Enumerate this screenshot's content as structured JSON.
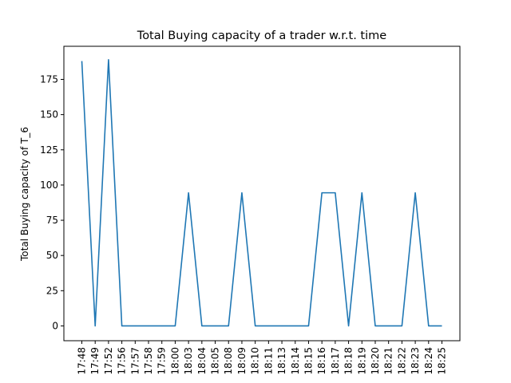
{
  "chart_data": {
    "type": "line",
    "title": "Total Buying capacity of a trader w.r.t. time",
    "xlabel": "",
    "ylabel": "Total Buying capacity of T_6",
    "categories": [
      "17:48",
      "17:49",
      "17:52",
      "17:56",
      "17:57",
      "17:58",
      "17:59",
      "18:00",
      "18:03",
      "18:04",
      "18:05",
      "18:08",
      "18:09",
      "18:10",
      "18:11",
      "18:13",
      "18:14",
      "18:15",
      "18:16",
      "18:17",
      "18:18",
      "18:19",
      "18:20",
      "18:21",
      "18:22",
      "18:23",
      "18:24",
      "18:25"
    ],
    "series": [
      {
        "name": "",
        "color": "#1f77b4",
        "values": [
          188,
          0,
          189,
          0,
          0,
          0,
          0,
          0,
          94.5,
          0,
          0,
          0,
          94.5,
          0,
          0,
          0,
          0,
          0,
          94.5,
          94.5,
          0,
          94.5,
          0,
          0,
          0,
          94.5,
          0,
          0
        ]
      }
    ],
    "ylim": [
      -10.5,
      198.5
    ],
    "yticks": [
      0,
      25,
      50,
      75,
      100,
      125,
      150,
      175
    ],
    "grid": false,
    "legend": "none"
  }
}
